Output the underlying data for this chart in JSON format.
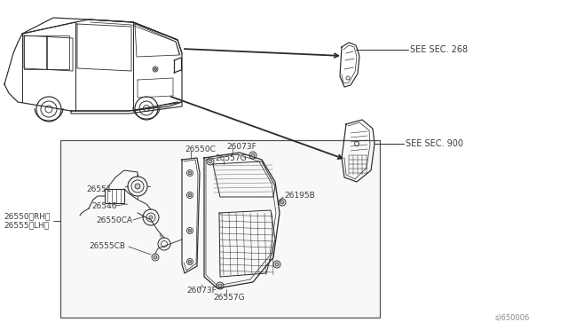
{
  "bg_color": "#ffffff",
  "diagram_id": "s)650006",
  "line_color": "#2a2a2a",
  "text_color": "#3a3a3a",
  "font_size": 6.5,
  "labels": {
    "see_sec_268": "SEE SEC. 268",
    "see_sec_900": "SEE SEC. 900",
    "26550C": "26550C",
    "26073F_top": "26073F",
    "26557G_top": "26557G",
    "26551": "26551",
    "26546": "26546",
    "26550CA": "26550CA",
    "26195B": "26195B",
    "26555CB": "26555CB",
    "26073F_bot": "26073F",
    "26557G_bot": "26557G",
    "26550_RH": "26550〈RH〉",
    "26555_LH": "26555〈LH〉"
  }
}
